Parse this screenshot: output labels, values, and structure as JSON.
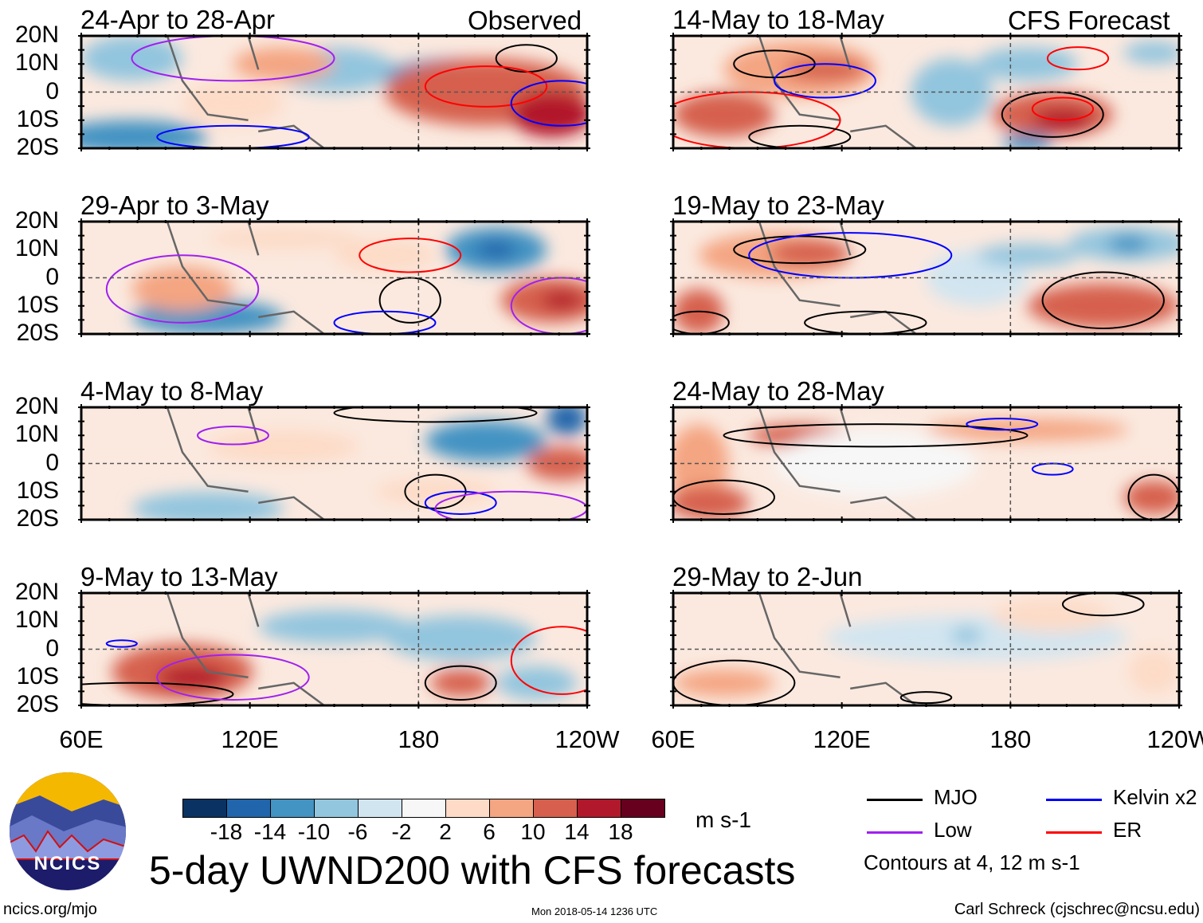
{
  "chart_data": {
    "type": "heatmap",
    "title": "5-day UWND200 with CFS forecasts",
    "units": "m s-1",
    "contour_note": "Contours at 4, 12 m s-1",
    "x_ticks": [
      "60E",
      "120E",
      "180",
      "120W"
    ],
    "y_ticks": [
      "20N",
      "10N",
      "0",
      "10S",
      "20S"
    ],
    "colorbar": {
      "levels": [
        "-18",
        "-14",
        "-10",
        "-6",
        "-2",
        "2",
        "6",
        "10",
        "14",
        "18"
      ],
      "colors": [
        "#0a3262",
        "#2166ac",
        "#4393c3",
        "#92c5de",
        "#d1e5f0",
        "#f7f7f7",
        "#fddbc7",
        "#f4a582",
        "#d6604d",
        "#b2182b",
        "#67001f"
      ]
    },
    "legend": [
      {
        "label": "MJO",
        "color": "#000000"
      },
      {
        "label": "Kelvin x2",
        "color": "#0000ff"
      },
      {
        "label": "Low",
        "color": "#a020f0"
      },
      {
        "label": "ER",
        "color": "#ff0000"
      }
    ],
    "column_headers": {
      "observed": "Observed",
      "forecast": "CFS Forecast"
    },
    "panels": [
      {
        "title": "24-Apr to 28-Apr",
        "column": "observed"
      },
      {
        "title": "29-Apr to 3-May",
        "column": "observed"
      },
      {
        "title": "4-May to 8-May",
        "column": "observed"
      },
      {
        "title": "9-May to 13-May",
        "column": "observed"
      },
      {
        "title": "14-May to 18-May",
        "column": "forecast"
      },
      {
        "title": "19-May to 23-May",
        "column": "forecast"
      },
      {
        "title": "24-May to 28-May",
        "column": "forecast"
      },
      {
        "title": "29-May to 2-Jun",
        "column": "forecast"
      }
    ]
  },
  "footer": {
    "logo_text": "NCICS",
    "url": "ncics.org/mjo",
    "timestamp": "Mon 2018-05-14 1236 UTC",
    "author": "Carl Schreck (cjschrec@ncsu.edu)"
  }
}
